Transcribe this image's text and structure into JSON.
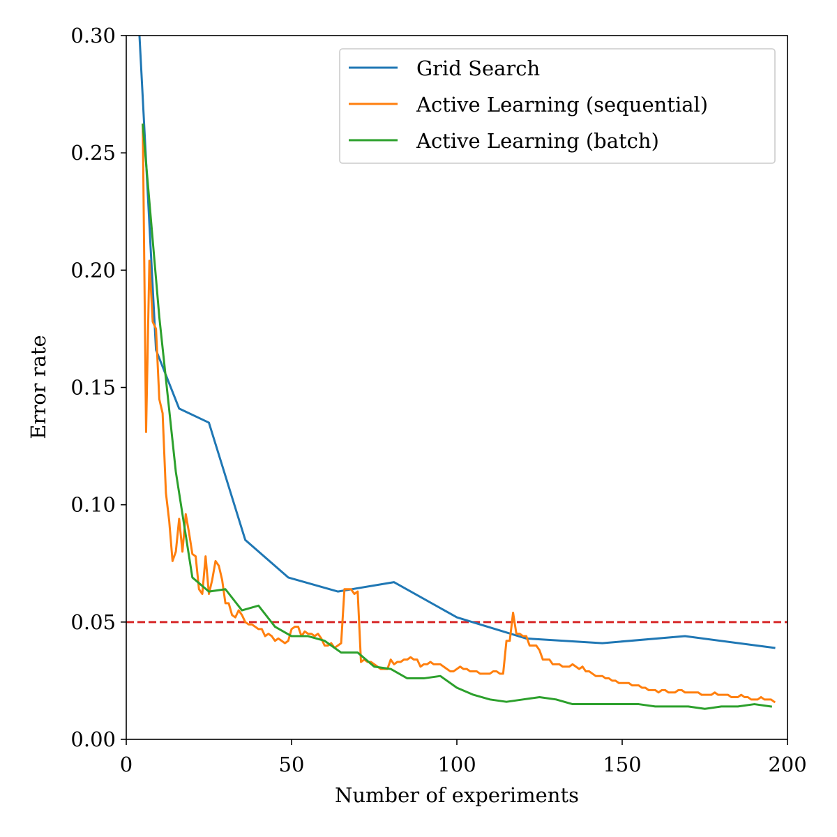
{
  "chart_data": {
    "type": "line",
    "title": "",
    "xlabel": "Number of experiments",
    "ylabel": "Error rate",
    "xlim": [
      0,
      200
    ],
    "ylim": [
      0,
      0.3
    ],
    "xticks": [
      "0",
      "50",
      "100",
      "150",
      "200"
    ],
    "yticks": [
      "0.00",
      "0.05",
      "0.10",
      "0.15",
      "0.20",
      "0.25",
      "0.30"
    ],
    "grid": false,
    "legend_position": "top-right",
    "reference_line": {
      "y": 0.05,
      "color": "#d62728",
      "style": "dashed"
    },
    "series": [
      {
        "name": "Grid Search",
        "color": "#1f77b4",
        "x": [
          4,
          9,
          16,
          25,
          36,
          49,
          64,
          81,
          100,
          121,
          144,
          169,
          196
        ],
        "y": [
          0.3,
          0.166,
          0.141,
          0.135,
          0.085,
          0.069,
          0.063,
          0.067,
          0.052,
          0.043,
          0.041,
          0.044,
          0.039
        ]
      },
      {
        "name": "Active Learning (sequential)",
        "color": "#ff7f0e",
        "x": [
          5,
          6,
          7,
          8,
          9,
          10,
          11,
          12,
          13,
          14,
          15,
          16,
          17,
          18,
          19,
          20,
          21,
          22,
          23,
          24,
          25,
          26,
          27,
          28,
          29,
          30,
          31,
          32,
          33,
          34,
          35,
          36,
          37,
          38,
          39,
          40,
          41,
          42,
          43,
          44,
          45,
          46,
          47,
          48,
          49,
          50,
          51,
          52,
          53,
          54,
          55,
          56,
          57,
          58,
          59,
          60,
          61,
          62,
          63,
          64,
          65,
          66,
          67,
          68,
          69,
          70,
          71,
          72,
          73,
          74,
          75,
          76,
          77,
          78,
          79,
          80,
          81,
          82,
          83,
          84,
          85,
          86,
          87,
          88,
          89,
          90,
          91,
          92,
          93,
          94,
          95,
          96,
          97,
          98,
          99,
          100,
          101,
          102,
          103,
          104,
          105,
          106,
          107,
          108,
          109,
          110,
          111,
          112,
          113,
          114,
          115,
          116,
          117,
          118,
          119,
          120,
          121,
          122,
          123,
          124,
          125,
          126,
          127,
          128,
          129,
          130,
          131,
          132,
          133,
          134,
          135,
          136,
          137,
          138,
          139,
          140,
          141,
          142,
          143,
          144,
          145,
          146,
          147,
          148,
          149,
          150,
          151,
          152,
          153,
          154,
          155,
          156,
          157,
          158,
          159,
          160,
          161,
          162,
          163,
          164,
          165,
          166,
          167,
          168,
          169,
          170,
          171,
          172,
          173,
          174,
          175,
          176,
          177,
          178,
          179,
          180,
          181,
          182,
          183,
          184,
          185,
          186,
          187,
          188,
          189,
          190,
          191,
          192,
          193,
          194,
          195,
          196
        ],
        "y": [
          0.262,
          0.131,
          0.204,
          0.178,
          0.175,
          0.145,
          0.139,
          0.105,
          0.093,
          0.076,
          0.08,
          0.094,
          0.08,
          0.096,
          0.088,
          0.079,
          0.078,
          0.064,
          0.062,
          0.078,
          0.062,
          0.068,
          0.076,
          0.074,
          0.068,
          0.058,
          0.058,
          0.053,
          0.052,
          0.055,
          0.053,
          0.05,
          0.049,
          0.049,
          0.048,
          0.047,
          0.047,
          0.044,
          0.045,
          0.044,
          0.042,
          0.043,
          0.042,
          0.041,
          0.042,
          0.047,
          0.048,
          0.048,
          0.044,
          0.046,
          0.045,
          0.045,
          0.044,
          0.045,
          0.043,
          0.04,
          0.04,
          0.041,
          0.039,
          0.04,
          0.041,
          0.064,
          0.064,
          0.064,
          0.062,
          0.063,
          0.033,
          0.034,
          0.033,
          0.033,
          0.032,
          0.031,
          0.03,
          0.03,
          0.03,
          0.034,
          0.032,
          0.033,
          0.033,
          0.034,
          0.034,
          0.035,
          0.034,
          0.034,
          0.031,
          0.032,
          0.032,
          0.033,
          0.032,
          0.032,
          0.032,
          0.031,
          0.03,
          0.029,
          0.029,
          0.03,
          0.031,
          0.03,
          0.03,
          0.029,
          0.029,
          0.029,
          0.028,
          0.028,
          0.028,
          0.028,
          0.029,
          0.029,
          0.028,
          0.028,
          0.042,
          0.042,
          0.054,
          0.045,
          0.045,
          0.044,
          0.044,
          0.04,
          0.04,
          0.04,
          0.038,
          0.034,
          0.034,
          0.034,
          0.032,
          0.032,
          0.032,
          0.031,
          0.031,
          0.031,
          0.032,
          0.031,
          0.03,
          0.031,
          0.029,
          0.029,
          0.028,
          0.027,
          0.027,
          0.027,
          0.026,
          0.026,
          0.025,
          0.025,
          0.024,
          0.024,
          0.024,
          0.024,
          0.023,
          0.023,
          0.023,
          0.022,
          0.022,
          0.021,
          0.021,
          0.021,
          0.02,
          0.021,
          0.021,
          0.02,
          0.02,
          0.02,
          0.021,
          0.021,
          0.02,
          0.02,
          0.02,
          0.02,
          0.02,
          0.019,
          0.019,
          0.019,
          0.019,
          0.02,
          0.019,
          0.019,
          0.019,
          0.019,
          0.018,
          0.018,
          0.018,
          0.019,
          0.018,
          0.018,
          0.017,
          0.017,
          0.017,
          0.018,
          0.017,
          0.017,
          0.017,
          0.016
        ]
      },
      {
        "name": "Active Learning (batch)",
        "color": "#2ca02c",
        "x": [
          5,
          10,
          15,
          20,
          25,
          30,
          35,
          40,
          45,
          50,
          55,
          60,
          65,
          70,
          75,
          80,
          85,
          90,
          95,
          100,
          105,
          110,
          115,
          120,
          125,
          130,
          135,
          140,
          145,
          150,
          155,
          160,
          165,
          170,
          175,
          180,
          185,
          190,
          195
        ],
        "y": [
          0.262,
          0.18,
          0.114,
          0.069,
          0.063,
          0.064,
          0.055,
          0.057,
          0.048,
          0.044,
          0.044,
          0.042,
          0.037,
          0.037,
          0.031,
          0.03,
          0.026,
          0.026,
          0.027,
          0.022,
          0.019,
          0.017,
          0.016,
          0.017,
          0.018,
          0.017,
          0.015,
          0.015,
          0.015,
          0.015,
          0.015,
          0.014,
          0.014,
          0.014,
          0.013,
          0.014,
          0.014,
          0.015,
          0.014
        ]
      }
    ]
  }
}
